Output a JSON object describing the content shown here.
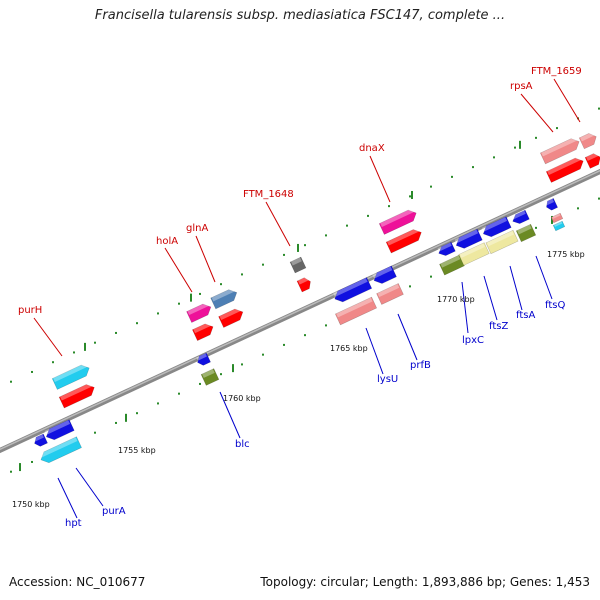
{
  "title": "Francisella tularensis subsp. mediasiatica FSC147, complete ...",
  "footer": {
    "accession": "Accession: NC_010677",
    "summary": "Topology: circular; Length: 1,893,886 bp; Genes: 1,453"
  },
  "kbp_labels": [
    "1750 kbp",
    "1755 kbp",
    "1760 kbp",
    "1765 kbp",
    "1770 kbp",
    "1775 kbp"
  ],
  "top_labels": [
    "purH",
    "holA",
    "glnA",
    "FTM_1648",
    "dnaX",
    "rpsA",
    "FTM_1659"
  ],
  "bottom_labels": [
    "hpt",
    "purA",
    "blc",
    "lysU",
    "prfB",
    "lpxC",
    "ftsZ",
    "ftsA",
    "ftsQ"
  ],
  "colors": {
    "red": "#ff0000",
    "blue": "#1010e0",
    "cyan": "#22ccee",
    "pink": "#f08888",
    "magenta": "#ee1199",
    "steelblue": "#4d7fb4",
    "olive": "#6b8a23",
    "khaki": "#eee8a0",
    "gray": "#666666",
    "tick": "#2a8a2a"
  }
}
